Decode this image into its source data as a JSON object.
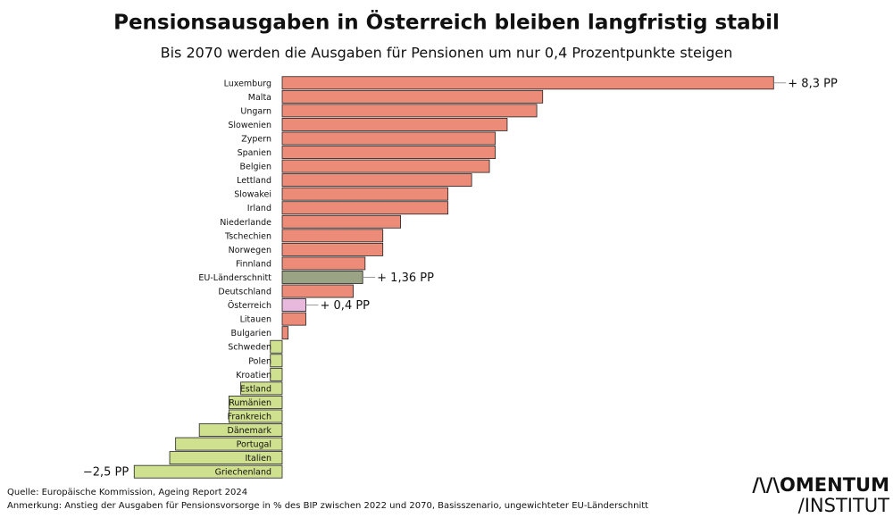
{
  "chart_data": {
    "type": "bar",
    "orientation": "horizontal",
    "title": "Pensionsausgaben in Österreich bleiben langfristig stabil",
    "subtitle": "Bis 2070 werden die Ausgaben für Pensionen um nur 0,4 Prozentpunkte steigen",
    "categories": [
      "Luxemburg",
      "Malta",
      "Ungarn",
      "Slowenien",
      "Zypern",
      "Spanien",
      "Belgien",
      "Lettland",
      "Slowakei",
      "Irland",
      "Niederlande",
      "Tschechien",
      "Norwegen",
      "Finnland",
      "EU-Länderschnitt",
      "Deutschland",
      "Österreich",
      "Litauen",
      "Bulgarien",
      "Schweden",
      "Polen",
      "Kroatien",
      "Estland",
      "Rumänien",
      "Frankreich",
      "Dänemark",
      "Portugal",
      "Italien",
      "Griechenland"
    ],
    "values": [
      8.3,
      4.4,
      4.3,
      3.8,
      3.6,
      3.6,
      3.5,
      3.2,
      2.8,
      2.8,
      2.0,
      1.7,
      1.7,
      1.4,
      1.36,
      1.2,
      0.4,
      0.4,
      0.1,
      -0.2,
      -0.2,
      -0.2,
      -0.7,
      -0.9,
      -0.9,
      -1.4,
      -1.8,
      -1.9,
      -2.5
    ],
    "value_labels": [
      "+ 8,3 PP",
      null,
      null,
      null,
      null,
      null,
      null,
      null,
      null,
      null,
      null,
      null,
      null,
      null,
      "+ 1,36 PP",
      null,
      "+ 0,4 PP",
      null,
      null,
      null,
      null,
      null,
      null,
      null,
      null,
      null,
      null,
      null,
      "−2,5 PP"
    ],
    "colors": [
      "#ec8b78",
      "#ec8b78",
      "#ec8b78",
      "#ec8b78",
      "#ec8b78",
      "#ec8b78",
      "#ec8b78",
      "#ec8b78",
      "#ec8b78",
      "#ec8b78",
      "#ec8b78",
      "#ec8b78",
      "#ec8b78",
      "#ec8b78",
      "#9aa383",
      "#ec8b78",
      "#e9b9dd",
      "#ec8b78",
      "#ec8b78",
      "#cfe08e",
      "#cfe08e",
      "#cfe08e",
      "#cfe08e",
      "#cfe08e",
      "#cfe08e",
      "#cfe08e",
      "#cfe08e",
      "#cfe08e",
      "#cfe08e"
    ],
    "source": "Quelle: Europäische Kommission, Ageing Report 2024",
    "note": "Anmerkung: Anstieg der Ausgaben für Pensionsvorsorge in % des BIP zwischen 2022 und 2070, Basisszenario, ungewichteter EU-Länderschnitt",
    "logo": [
      "/\\/\\OMENTUM",
      "/INSTITUT"
    ]
  }
}
